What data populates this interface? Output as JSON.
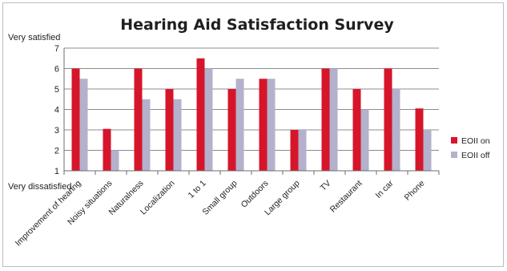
{
  "chart_data": {
    "type": "bar",
    "title": "Hearing Aid Satisfaction Survey",
    "ylabel_top": "Very satisfied",
    "ylabel_bottom": "Very dissatisfied",
    "ylim": [
      1,
      7
    ],
    "yticks": [
      "1",
      "2",
      "3",
      "4",
      "5",
      "6",
      "7"
    ],
    "grid": true,
    "legend_position": "right",
    "categories": [
      "Improvement of hearing",
      "Noisy situations",
      "Naturalness",
      "Localization",
      "1 to 1",
      "Small group",
      "Outdoors",
      "Large group",
      "TV",
      "Restaurant",
      "In car",
      "Phone"
    ],
    "series": [
      {
        "name": "EOII on",
        "color": "#d7152a",
        "values": [
          6,
          3.05,
          6,
          5,
          6.5,
          5,
          5.5,
          3,
          6,
          5,
          6,
          4.05
        ]
      },
      {
        "name": "EOII off",
        "color": "#b4b1cc",
        "values": [
          5.5,
          2,
          4.5,
          4.5,
          6,
          5.5,
          5.5,
          3,
          6,
          4,
          5,
          3
        ]
      }
    ]
  }
}
